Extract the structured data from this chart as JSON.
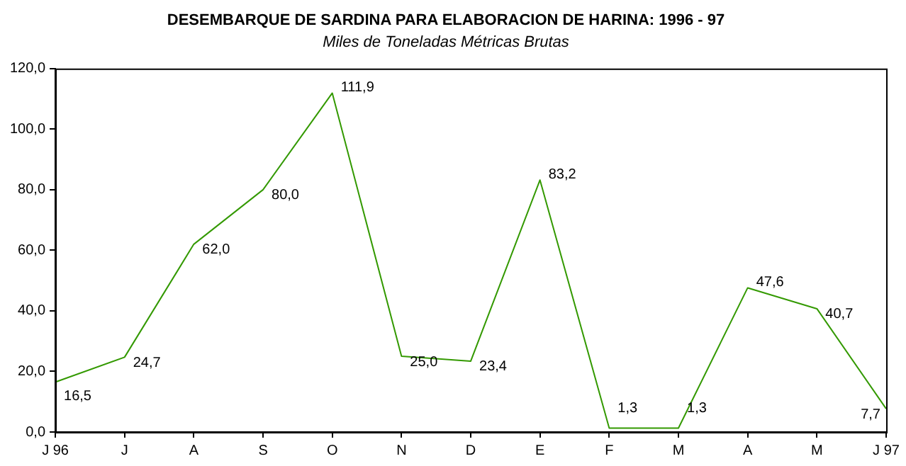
{
  "chart_data": {
    "type": "line",
    "title": "DESEMBARQUE DE SARDINA PARA ELABORACION DE HARINA: 1996 - 97",
    "subtitle": "Miles de Toneladas Métricas Brutas",
    "categories": [
      "J 96",
      "J",
      "A",
      "S",
      "O",
      "N",
      "D",
      "E",
      "F",
      "M",
      "A",
      "M",
      "J 97"
    ],
    "series": [
      {
        "color": "#339900",
        "values": [
          16.5,
          24.7,
          62.0,
          80.0,
          111.9,
          25.0,
          23.4,
          83.2,
          1.3,
          1.3,
          47.6,
          40.7,
          7.7
        ],
        "value_labels": [
          "16,5",
          "24,7",
          "62,0",
          "80,0",
          "111,9",
          "25,0",
          "23,4",
          "83,2",
          "1,3",
          "1,3",
          "47,6",
          "40,7",
          "7,7"
        ]
      }
    ],
    "ylim": [
      0,
      120
    ],
    "yticks": [
      {
        "value": 0,
        "label": "0,0"
      },
      {
        "value": 20,
        "label": "20,0"
      },
      {
        "value": 40,
        "label": "40,0"
      },
      {
        "value": 60,
        "label": "60,0"
      },
      {
        "value": 80,
        "label": "80,0"
      },
      {
        "value": 100,
        "label": "100,0"
      },
      {
        "value": 120,
        "label": "120,0"
      }
    ],
    "grid": false,
    "legend": false,
    "marker": "none",
    "line_style": "solid"
  }
}
